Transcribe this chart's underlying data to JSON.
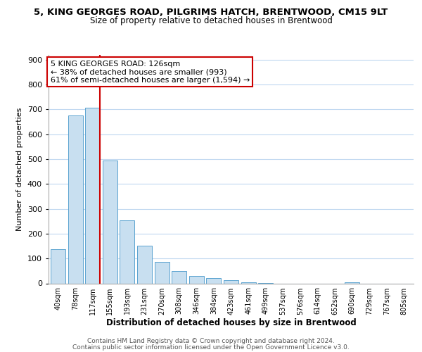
{
  "title": "5, KING GEORGES ROAD, PILGRIMS HATCH, BRENTWOOD, CM15 9LT",
  "subtitle": "Size of property relative to detached houses in Brentwood",
  "xlabel": "Distribution of detached houses by size in Brentwood",
  "ylabel": "Number of detached properties",
  "bar_labels": [
    "40sqm",
    "78sqm",
    "117sqm",
    "155sqm",
    "193sqm",
    "231sqm",
    "270sqm",
    "308sqm",
    "346sqm",
    "384sqm",
    "423sqm",
    "461sqm",
    "499sqm",
    "537sqm",
    "576sqm",
    "614sqm",
    "652sqm",
    "690sqm",
    "729sqm",
    "767sqm",
    "805sqm"
  ],
  "bar_values": [
    137,
    675,
    707,
    493,
    253,
    152,
    85,
    50,
    30,
    20,
    13,
    5,
    2,
    0,
    0,
    0,
    0,
    5,
    0,
    0,
    0
  ],
  "bar_color": "#c8dff0",
  "bar_edge_color": "#5ba3d0",
  "vline_color": "#cc0000",
  "ylim": [
    0,
    920
  ],
  "yticks": [
    0,
    100,
    200,
    300,
    400,
    500,
    600,
    700,
    800,
    900
  ],
  "annotation_line1": "5 KING GEORGES ROAD: 126sqm",
  "annotation_line2": "← 38% of detached houses are smaller (993)",
  "annotation_line3": "61% of semi-detached houses are larger (1,594) →",
  "annotation_box_color": "#ffffff",
  "annotation_box_edge": "#cc0000",
  "footer_line1": "Contains HM Land Registry data © Crown copyright and database right 2024.",
  "footer_line2": "Contains public sector information licensed under the Open Government Licence v3.0.",
  "background_color": "#ffffff",
  "grid_color": "#c0d8f0"
}
